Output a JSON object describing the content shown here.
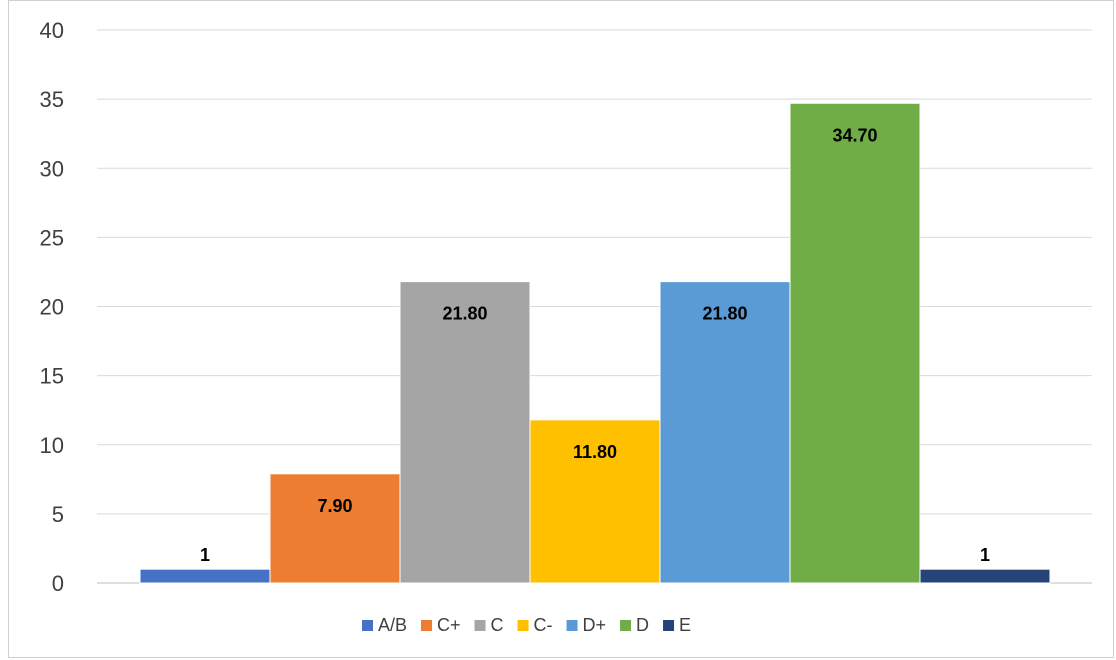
{
  "chart_data": {
    "type": "bar",
    "categories": [
      "A/B",
      "C+",
      "C",
      "C-",
      "D+",
      "D",
      "E"
    ],
    "values": [
      1,
      7.9,
      21.8,
      11.8,
      21.8,
      34.7,
      1
    ],
    "data_labels": [
      "1",
      "7.90",
      "21.80",
      "11.80",
      "21.80",
      "34.70",
      "1"
    ],
    "colors": [
      "#4472c4",
      "#ed7d31",
      "#a5a5a5",
      "#ffc000",
      "#5b9bd5",
      "#70ad47",
      "#264478"
    ],
    "ylim": [
      0,
      40
    ],
    "yticks": [
      "0",
      "5",
      "10",
      "15",
      "20",
      "25",
      "30",
      "35",
      "40"
    ],
    "grid": true,
    "legend_position": "bottom",
    "title": "",
    "xlabel": "",
    "ylabel": ""
  }
}
